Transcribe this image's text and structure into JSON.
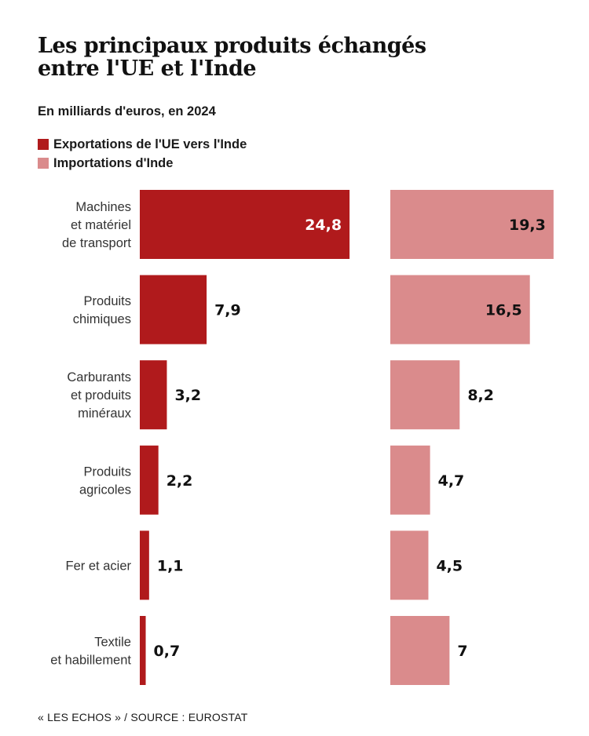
{
  "chart_data": {
    "type": "bar",
    "orientation": "horizontal",
    "title": "Les principaux produits échangés entre l'UE et l'Inde",
    "title_lines": [
      "Les principaux produits échangés",
      "entre l'UE et l'Inde"
    ],
    "subtitle": "En milliards d'euros, en 2024",
    "categories": [
      [
        "Machines",
        "et matériel",
        "de transport"
      ],
      [
        "Produits",
        "chimiques"
      ],
      [
        "Carburants",
        "et produits",
        "minéraux"
      ],
      [
        "Produits",
        "agricoles"
      ],
      [
        "Fer et acier"
      ],
      [
        "Textile",
        "et habillement"
      ]
    ],
    "series": [
      {
        "name": "Exportations de l'UE vers l'Inde",
        "color": "#b01a1c",
        "values": [
          24.8,
          7.9,
          3.2,
          2.2,
          1.1,
          0.7
        ],
        "labels": [
          "24,8",
          "7,9",
          "3,2",
          "2,2",
          "1,1",
          "0,7"
        ]
      },
      {
        "name": "Importations d'Inde",
        "color": "#da8b8c",
        "values": [
          19.3,
          16.5,
          8.2,
          4.7,
          4.5,
          7
        ],
        "labels": [
          "19,3",
          "16,5",
          "8,2",
          "4,7",
          "4,5",
          "7"
        ]
      }
    ],
    "xlabel": "",
    "ylabel": "",
    "grid": false,
    "legend_position": "top-left"
  },
  "footer": {
    "source": "« LES ECHOS » / SOURCE : EUROSTAT"
  }
}
